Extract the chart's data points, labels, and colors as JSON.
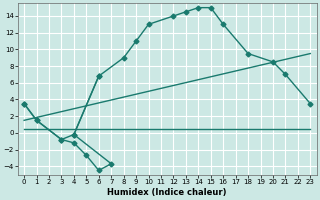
{
  "xlabel": "Humidex (Indice chaleur)",
  "bg_color": "#cce8e4",
  "grid_color": "#ffffff",
  "line_color": "#1a7a6e",
  "xlim": [
    -0.5,
    23.5
  ],
  "ylim": [
    -5,
    15.5
  ],
  "xticks": [
    0,
    1,
    2,
    3,
    4,
    5,
    6,
    7,
    8,
    9,
    10,
    11,
    12,
    13,
    14,
    15,
    16,
    17,
    18,
    19,
    20,
    21,
    22,
    23
  ],
  "yticks": [
    -4,
    -2,
    0,
    2,
    4,
    6,
    8,
    10,
    12,
    14
  ],
  "curve_main_x": [
    0,
    1,
    3,
    4,
    6,
    8,
    9,
    10,
    12,
    13,
    14,
    15,
    16,
    18,
    20,
    21,
    23
  ],
  "curve_main_y": [
    3.5,
    1.5,
    -0.8,
    -0.2,
    6.8,
    9.0,
    11.0,
    13.0,
    14.0,
    14.5,
    15.0,
    15.0,
    13.0,
    9.5,
    8.5,
    7.0,
    3.5
  ],
  "curve_low_x": [
    0,
    1,
    3,
    4,
    5,
    6,
    7,
    4,
    6
  ],
  "curve_low_y": [
    3.5,
    1.5,
    -0.8,
    -1.2,
    -2.7,
    -4.5,
    -3.7,
    -0.2,
    6.8
  ],
  "line1_x": [
    0,
    23
  ],
  "line1_y": [
    0.5,
    0.5
  ],
  "line2_x": [
    0,
    23
  ],
  "line2_y": [
    1.5,
    9.5
  ]
}
